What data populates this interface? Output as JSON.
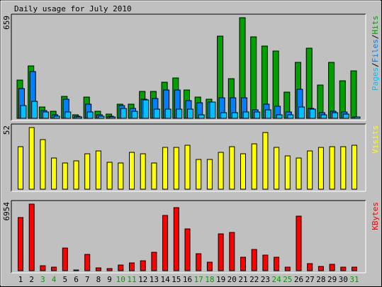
{
  "title": "Daily usage for July 2010",
  "colors": {
    "background": "#c0c0c0",
    "hits": "#00a000",
    "files": "#0080ff",
    "pages": "#00c0ff",
    "visits": "#ffff00",
    "kbytes": "#ff0000",
    "weekend_label": "#00a000",
    "weekday_label": "#000000"
  },
  "chart_data": [
    {
      "type": "bar",
      "panel": "hits-files-pages",
      "side_label_parts": [
        {
          "text": "Pages",
          "color": "#00c0ff"
        },
        {
          "text": "/",
          "color": "#000000"
        },
        {
          "text": "Files",
          "color": "#0080ff"
        },
        {
          "text": "/",
          "color": "#000000"
        },
        {
          "text": "Hits",
          "color": "#00a000"
        }
      ],
      "max_label": "659",
      "ylim": [
        0,
        659
      ],
      "categories": [
        "1",
        "2",
        "3",
        "4",
        "5",
        "6",
        "7",
        "8",
        "9",
        "10",
        "11",
        "12",
        "13",
        "14",
        "15",
        "16",
        "17",
        "18",
        "19",
        "20",
        "21",
        "22",
        "23",
        "24",
        "25",
        "26",
        "27",
        "28",
        "29",
        "30",
        "31"
      ],
      "series": [
        {
          "name": "Hits",
          "color": "#00a000",
          "values": [
            250,
            345,
            75,
            45,
            145,
            25,
            140,
            45,
            30,
            95,
            95,
            175,
            175,
            235,
            265,
            185,
            140,
            125,
            540,
            260,
            659,
            535,
            475,
            440,
            170,
            365,
            460,
            220,
            365,
            245,
            310
          ]
        },
        {
          "name": "Files",
          "color": "#0080ff",
          "values": [
            195,
            305,
            50,
            25,
            125,
            15,
            95,
            25,
            15,
            85,
            65,
            125,
            130,
            185,
            185,
            115,
            100,
            105,
            135,
            135,
            135,
            55,
            95,
            80,
            40,
            190,
            65,
            35,
            45,
            40,
            10
          ]
        },
        {
          "name": "Pages",
          "color": "#00c0ff",
          "values": [
            85,
            110,
            40,
            15,
            40,
            10,
            40,
            15,
            10,
            65,
            45,
            120,
            60,
            60,
            60,
            60,
            25,
            105,
            35,
            35,
            40,
            40,
            55,
            25,
            25,
            75,
            60,
            25,
            35,
            30,
            10
          ]
        }
      ]
    },
    {
      "type": "bar",
      "panel": "visits",
      "side_label_parts": [
        {
          "text": "Visits",
          "color": "#ffff00"
        }
      ],
      "max_label": "52",
      "ylim": [
        0,
        52
      ],
      "categories": [
        "1",
        "2",
        "3",
        "4",
        "5",
        "6",
        "7",
        "8",
        "9",
        "10",
        "11",
        "12",
        "13",
        "14",
        "15",
        "16",
        "17",
        "18",
        "19",
        "20",
        "21",
        "22",
        "23",
        "24",
        "25",
        "26",
        "27",
        "28",
        "29",
        "30",
        "31"
      ],
      "series": [
        {
          "name": "Visits",
          "color": "#ffff00",
          "values": [
            36,
            52,
            42,
            26,
            22,
            24,
            30,
            32,
            23,
            22,
            31,
            30,
            22,
            35,
            35,
            37,
            25,
            25,
            31,
            36,
            30,
            38,
            48,
            35,
            28,
            26,
            32,
            35,
            36,
            36,
            37
          ]
        }
      ]
    },
    {
      "type": "bar",
      "panel": "kbytes",
      "side_label_parts": [
        {
          "text": "KBytes",
          "color": "#ff0000"
        }
      ],
      "max_label": "6954",
      "ylim": [
        0,
        6954
      ],
      "categories": [
        "1",
        "2",
        "3",
        "4",
        "5",
        "6",
        "7",
        "8",
        "9",
        "10",
        "11",
        "12",
        "13",
        "14",
        "15",
        "16",
        "17",
        "18",
        "19",
        "20",
        "21",
        "22",
        "23",
        "24",
        "25",
        "26",
        "27",
        "28",
        "29",
        "30",
        "31"
      ],
      "series": [
        {
          "name": "KBytes",
          "color": "#ff0000",
          "values": [
            5550,
            6954,
            530,
            380,
            2380,
            80,
            1720,
            260,
            240,
            560,
            840,
            1010,
            1920,
            5740,
            6600,
            4350,
            1780,
            880,
            3830,
            3960,
            1440,
            2230,
            1640,
            1390,
            390,
            5720,
            730,
            460,
            640,
            350,
            350
          ]
        }
      ]
    }
  ],
  "x_labels": [
    {
      "text": "1",
      "weekend": false
    },
    {
      "text": "2",
      "weekend": false
    },
    {
      "text": "3",
      "weekend": true
    },
    {
      "text": "4",
      "weekend": true
    },
    {
      "text": "5",
      "weekend": false
    },
    {
      "text": "6",
      "weekend": false
    },
    {
      "text": "7",
      "weekend": false
    },
    {
      "text": "8",
      "weekend": false
    },
    {
      "text": "9",
      "weekend": false
    },
    {
      "text": "10",
      "weekend": true
    },
    {
      "text": "11",
      "weekend": true
    },
    {
      "text": "12",
      "weekend": false
    },
    {
      "text": "13",
      "weekend": false
    },
    {
      "text": "14",
      "weekend": false
    },
    {
      "text": "15",
      "weekend": false
    },
    {
      "text": "16",
      "weekend": false
    },
    {
      "text": "17",
      "weekend": true
    },
    {
      "text": "18",
      "weekend": true
    },
    {
      "text": "19",
      "weekend": false
    },
    {
      "text": "20",
      "weekend": false
    },
    {
      "text": "21",
      "weekend": false
    },
    {
      "text": "22",
      "weekend": false
    },
    {
      "text": "23",
      "weekend": false
    },
    {
      "text": "24",
      "weekend": true
    },
    {
      "text": "25",
      "weekend": true
    },
    {
      "text": "26",
      "weekend": false
    },
    {
      "text": "27",
      "weekend": false
    },
    {
      "text": "28",
      "weekend": false
    },
    {
      "text": "29",
      "weekend": false
    },
    {
      "text": "30",
      "weekend": false
    },
    {
      "text": "31",
      "weekend": true
    }
  ]
}
